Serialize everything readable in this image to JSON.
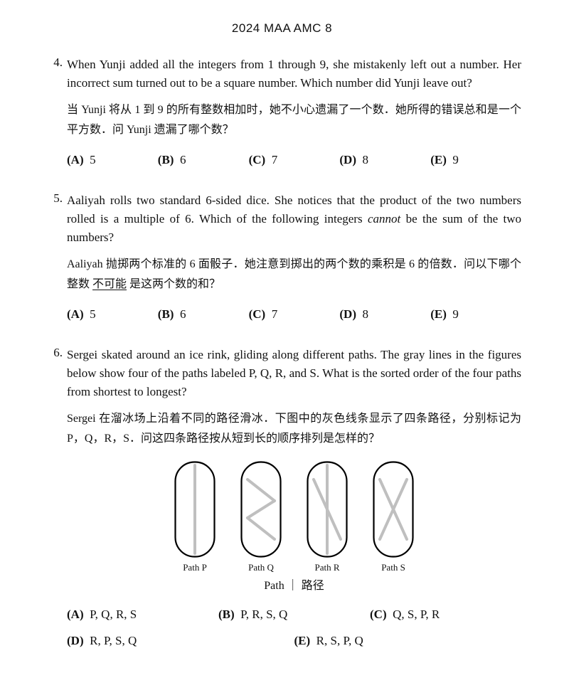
{
  "header": "2024 MAA AMC 8",
  "problems": [
    {
      "num": "4.",
      "text_en": "When Yunji added all the integers from 1 through 9, she mistakenly left out a number. Her incorrect sum turned out to be a square number. Which number did Yunji leave out?",
      "text_zh": "当 Yunji 将从 1 到 9 的所有整数相加时，她不小心遗漏了一个数．她所得的错误总和是一个平方数．问 Yunji 遗漏了哪个数？",
      "choices": [
        {
          "label": "(A)",
          "value": "5"
        },
        {
          "label": "(B)",
          "value": "6"
        },
        {
          "label": "(C)",
          "value": "7"
        },
        {
          "label": "(D)",
          "value": "8"
        },
        {
          "label": "(E)",
          "value": "9"
        }
      ]
    },
    {
      "num": "5.",
      "text_en_pre": "Aaliyah rolls two standard 6-sided dice. She notices that the product of the two numbers rolled is a multiple of 6. Which of the following integers ",
      "text_en_em": "cannot",
      "text_en_post": " be the sum of the two numbers?",
      "text_zh_pre": "Aaliyah 抛掷两个标准的 6 面骰子．她注意到掷出的两个数的乘积是 6 的倍数．问以下哪个整数 ",
      "text_zh_u": "不可能",
      "text_zh_post": " 是这两个数的和？",
      "choices": [
        {
          "label": "(A)",
          "value": "5"
        },
        {
          "label": "(B)",
          "value": "6"
        },
        {
          "label": "(C)",
          "value": "7"
        },
        {
          "label": "(D)",
          "value": "8"
        },
        {
          "label": "(E)",
          "value": "9"
        }
      ]
    },
    {
      "num": "6.",
      "text_en": "Sergei skated around an ice rink, gliding along different paths. The gray lines in the figures below show four of the paths labeled P, Q, R, and S. What is the sorted order of the four paths from shortest to longest?",
      "text_zh": "Sergei 在溜冰场上沿着不同的路径滑冰．下图中的灰色线条显示了四条路径，分别标记为 P，Q，R，S．问这四条路径按从短到长的顺序排列是怎样的？",
      "fig_labels": [
        "Path P",
        "Path Q",
        "Path R",
        "Path S"
      ],
      "fig_caption": "Path ｜ 路径",
      "choices_row1": [
        {
          "label": "(A)",
          "value": "P, Q, R, S"
        },
        {
          "label": "(B)",
          "value": "P, R, S, Q"
        },
        {
          "label": "(C)",
          "value": "Q, S, P, R"
        }
      ],
      "choices_row2": [
        {
          "label": "(D)",
          "value": "R, P, S, Q"
        },
        {
          "label": "(E)",
          "value": "R, S, P, Q"
        }
      ],
      "rink": {
        "outline_stroke": "#000000",
        "outline_width": 2.2,
        "path_stroke": "#bfbfbf",
        "path_width": 4,
        "w": 58,
        "h": 136,
        "r": 27,
        "paths": {
          "P": [
            [
              29,
              6,
              29,
              130
            ]
          ],
          "Q": [
            [
              10,
              26,
              48,
              56
            ],
            [
              48,
              56,
              10,
              80
            ],
            [
              10,
              80,
              48,
              110
            ]
          ],
          "R": [
            [
              29,
              6,
              29,
              130
            ],
            [
              10,
              26,
              48,
              110
            ]
          ],
          "S": [
            [
              10,
              26,
              48,
              110
            ],
            [
              48,
              26,
              10,
              110
            ]
          ]
        }
      }
    }
  ]
}
